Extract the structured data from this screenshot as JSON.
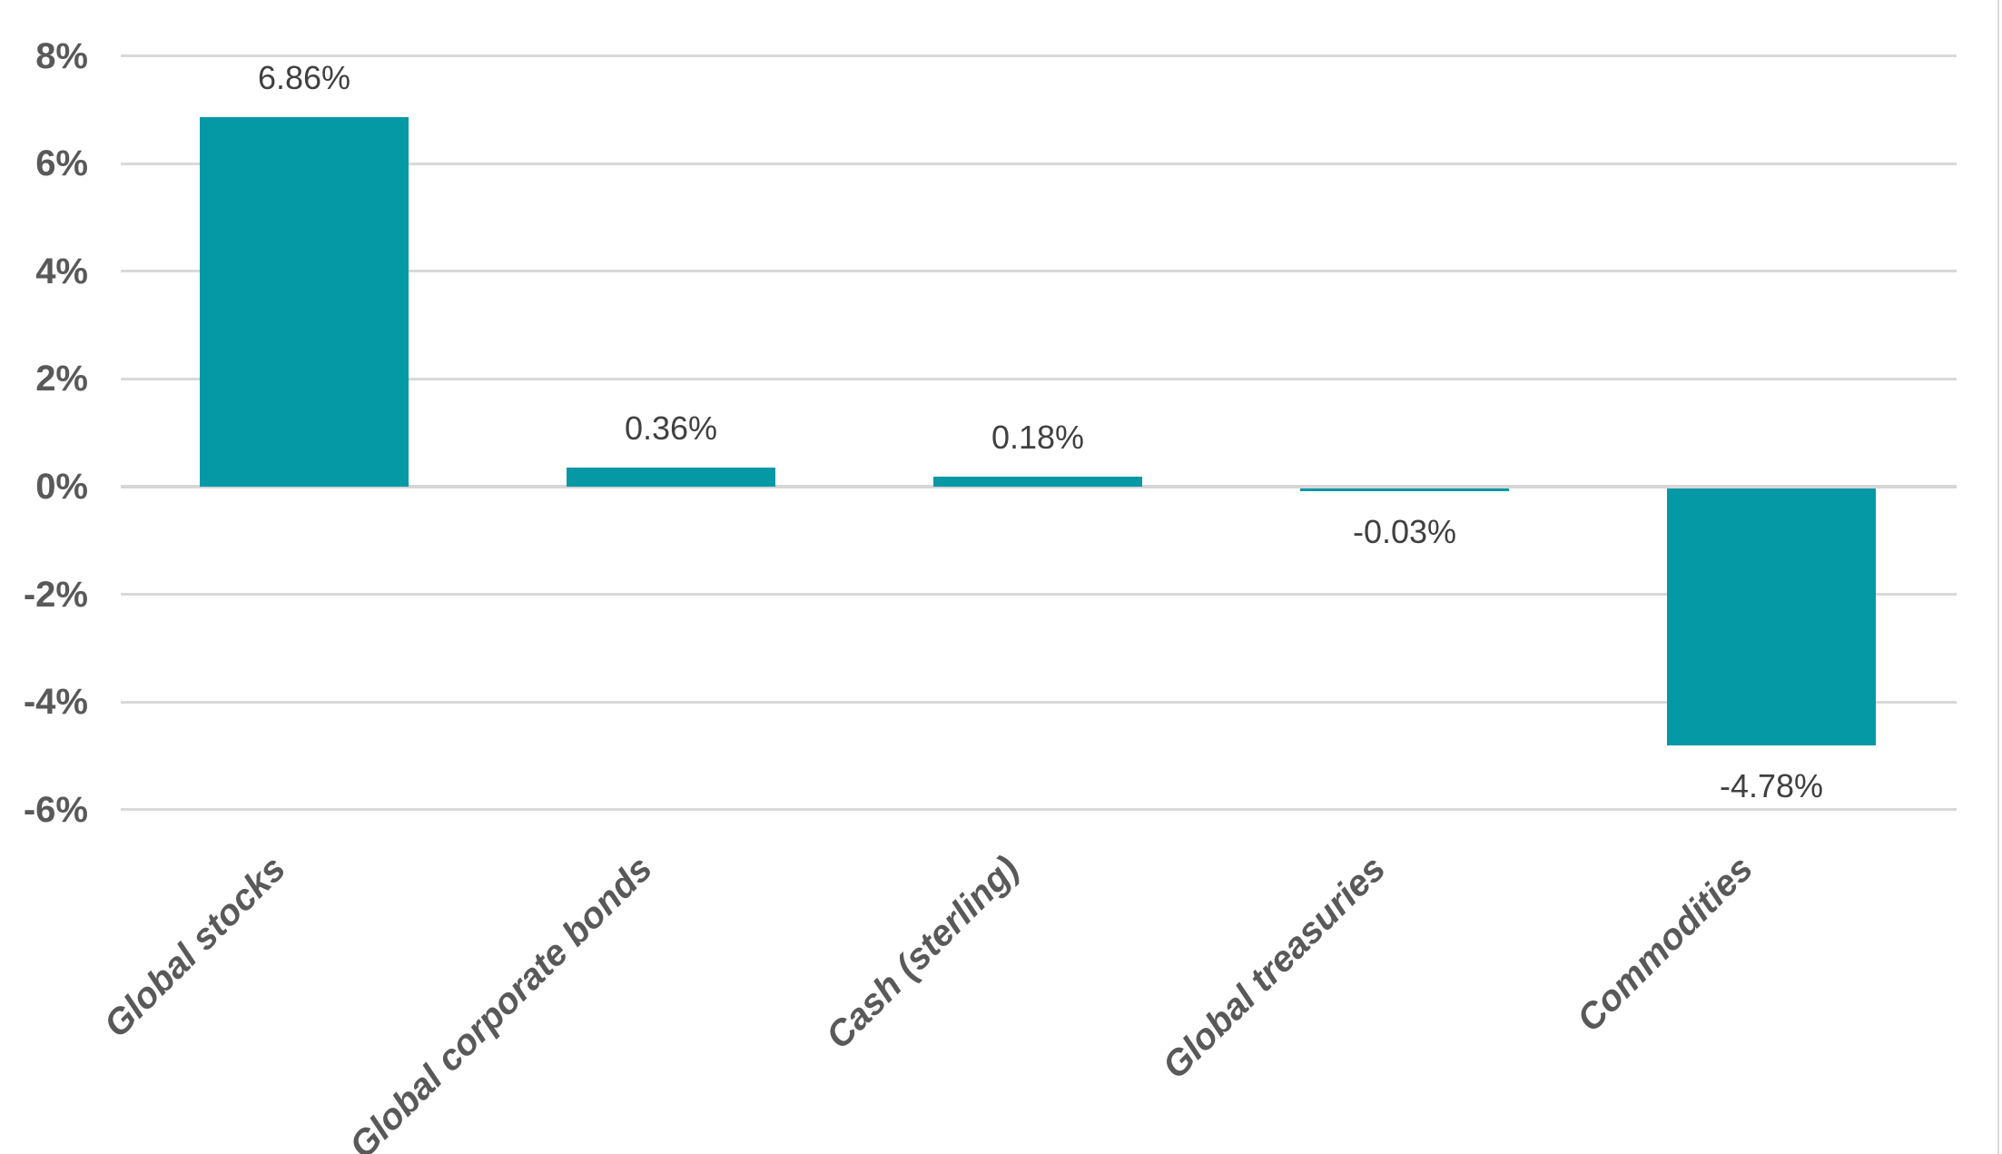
{
  "chart_data": {
    "type": "bar",
    "title": "",
    "xlabel": "",
    "ylabel": "",
    "categories": [
      "Global stocks",
      "Global corporate bonds",
      "Cash (sterling)",
      "Global treasuries",
      "Commodities"
    ],
    "values": [
      6.86,
      0.36,
      0.18,
      -0.03,
      -4.78
    ],
    "value_labels": [
      "6.86%",
      "0.36%",
      "0.18%",
      "-0.03%",
      "-4.78%"
    ],
    "ytick_values": [
      8,
      6,
      4,
      2,
      0,
      -2,
      -4,
      -6
    ],
    "ytick_labels": [
      "8%",
      "6%",
      "4%",
      "2%",
      "0%",
      "-2%",
      "-4%",
      "-6%"
    ],
    "ylim": [
      -6,
      8
    ],
    "grid": true,
    "legend": false,
    "colors": {
      "bar": "#0599A6",
      "gridline": "#D9D9D9",
      "zero_line": "#D6D6D6",
      "axis_label": "#595959",
      "value_label": "#404040",
      "category_label": "#595959",
      "edge_line": "#D9D9D9"
    }
  }
}
